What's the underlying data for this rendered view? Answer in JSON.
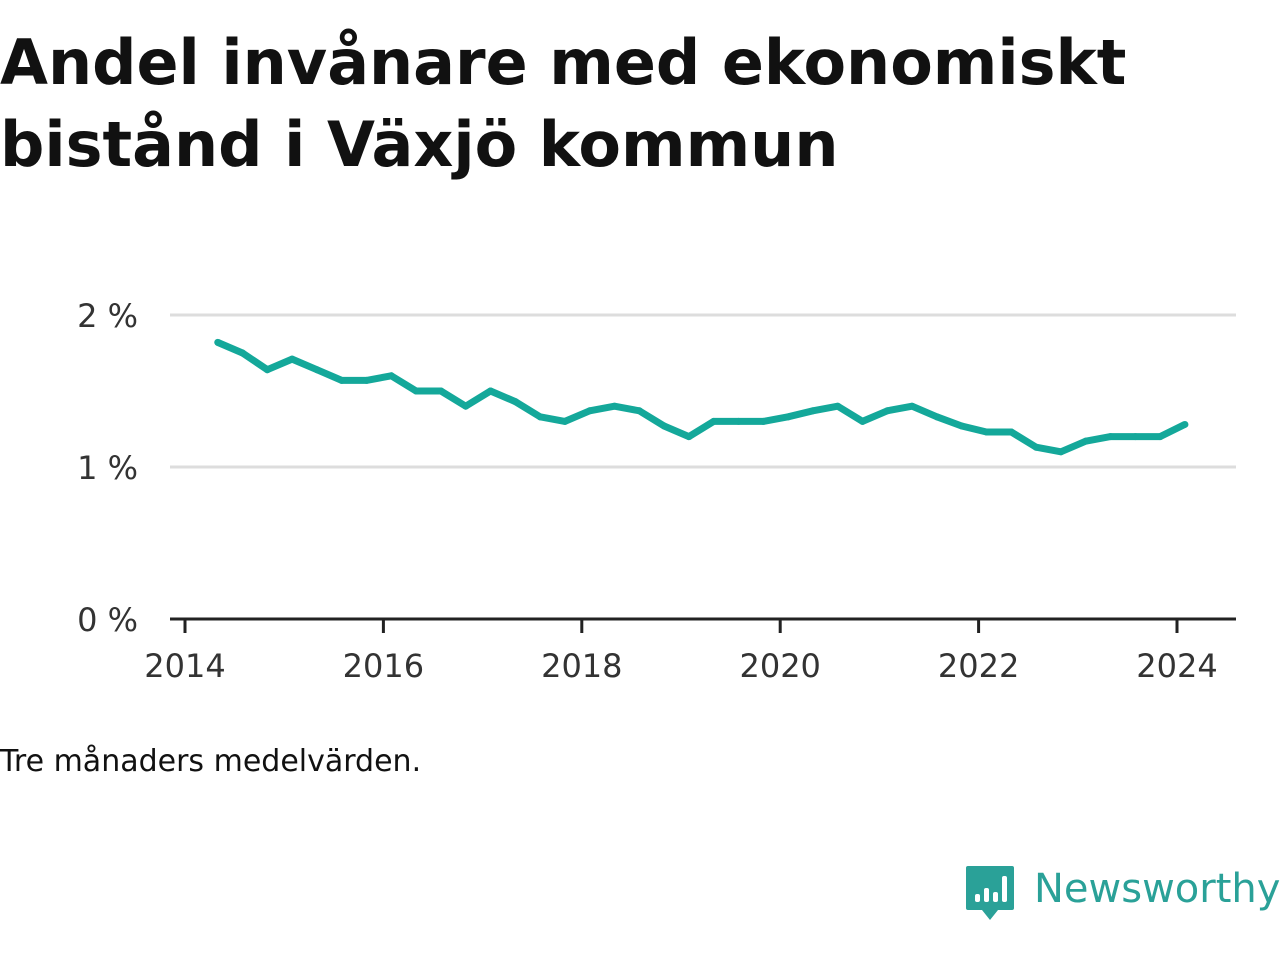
{
  "title": "Andel invånare med ekonomiskt bistånd i Växjö kommun",
  "note": "Tre månaders medelvärden.",
  "brand": {
    "name": "Newsworthy",
    "color": "#2aa198",
    "icon": "bar-chart-speech-bubble-icon"
  },
  "colors": {
    "line": "#14a89a",
    "grid": "#dddddd",
    "axis": "#222222",
    "text": "#333333"
  },
  "chart_data": {
    "type": "line",
    "x_ticks": [
      "2014",
      "2016",
      "2018",
      "2020",
      "2022",
      "2024"
    ],
    "y_ticks": [
      {
        "value": 0,
        "label": "0 %"
      },
      {
        "value": 1,
        "label": "1 %"
      },
      {
        "value": 2,
        "label": "2 %"
      }
    ],
    "ylim": [
      0,
      2
    ],
    "xlim": [
      2014,
      2024.5
    ],
    "grid": true,
    "series": [
      {
        "x": [
          2014.33,
          2014.58,
          2014.83,
          2015.08,
          2015.33,
          2015.58,
          2015.83,
          2016.08,
          2016.33,
          2016.58,
          2016.83,
          2017.08,
          2017.33,
          2017.58,
          2017.83,
          2018.08,
          2018.33,
          2018.58,
          2018.83,
          2019.08,
          2019.33,
          2019.58,
          2019.83,
          2020.08,
          2020.33,
          2020.58,
          2020.83,
          2021.08,
          2021.33,
          2021.58,
          2021.83,
          2022.08,
          2022.33,
          2022.58,
          2022.83,
          2023.08,
          2023.33,
          2023.58,
          2023.83,
          2024.08
        ],
        "y": [
          1.82,
          1.75,
          1.64,
          1.71,
          1.64,
          1.57,
          1.57,
          1.6,
          1.5,
          1.5,
          1.4,
          1.5,
          1.43,
          1.33,
          1.3,
          1.37,
          1.4,
          1.37,
          1.27,
          1.2,
          1.3,
          1.3,
          1.3,
          1.33,
          1.37,
          1.4,
          1.3,
          1.37,
          1.4,
          1.33,
          1.27,
          1.23,
          1.23,
          1.13,
          1.1,
          1.17,
          1.2,
          1.2,
          1.2,
          1.28
        ]
      }
    ]
  }
}
